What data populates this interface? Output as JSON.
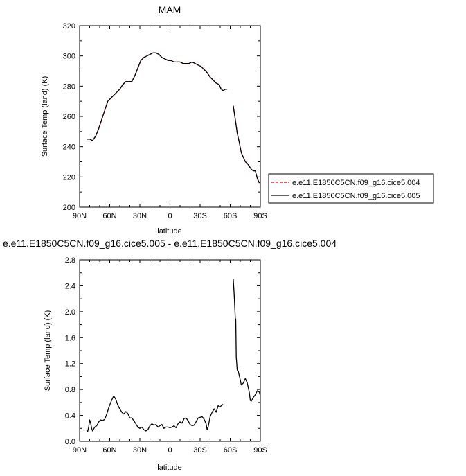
{
  "chart_data": [
    {
      "type": "line",
      "title": "MAM",
      "xlabel": "latitude",
      "ylabel": "Surface Temp (land) (K)",
      "xlim": [
        90,
        -90
      ],
      "ylim": [
        200,
        320
      ],
      "xticks": [
        90,
        60,
        30,
        0,
        -30,
        -60,
        -90
      ],
      "xtick_labels": [
        "90N",
        "60N",
        "30N",
        "0",
        "30S",
        "60S",
        "90S"
      ],
      "yticks": [
        200,
        220,
        240,
        260,
        280,
        300,
        320
      ],
      "ytick_labels": [
        "200",
        "220",
        "240",
        "260",
        "280",
        "300",
        "320"
      ],
      "legend_position": "right",
      "series": [
        {
          "name": "e.e11.E1850C5CN.f09_g16.cice5.004",
          "color": "#cc0000",
          "style": "dashed",
          "segments": [
            [
              [
                83,
                245
              ],
              [
                80,
                245
              ],
              [
                77,
                244
              ],
              [
                74,
                247
              ],
              [
                71,
                252
              ],
              [
                68,
                258
              ],
              [
                65,
                264
              ],
              [
                62,
                270
              ],
              [
                59,
                272
              ],
              [
                56,
                274
              ],
              [
                53,
                276
              ],
              [
                50,
                278
              ],
              [
                47,
                281
              ],
              [
                44,
                283
              ],
              [
                41,
                283
              ],
              [
                38,
                283
              ],
              [
                35,
                287
              ],
              [
                32,
                292
              ],
              [
                29,
                297
              ],
              [
                26,
                299
              ],
              [
                23,
                300
              ],
              [
                20,
                301
              ],
              [
                17,
                302
              ],
              [
                14,
                302
              ],
              [
                11,
                301
              ],
              [
                8,
                299
              ],
              [
                5,
                298
              ],
              [
                2,
                297
              ],
              [
                -1,
                297
              ],
              [
                -4,
                296
              ],
              [
                -7,
                296
              ],
              [
                -10,
                296
              ],
              [
                -13,
                295
              ],
              [
                -16,
                295
              ],
              [
                -19,
                295
              ],
              [
                -22,
                296
              ],
              [
                -25,
                295
              ],
              [
                -28,
                294
              ],
              [
                -31,
                293
              ],
              [
                -34,
                291
              ],
              [
                -37,
                289
              ],
              [
                -40,
                286
              ],
              [
                -43,
                284
              ],
              [
                -46,
                282
              ],
              [
                -49,
                281
              ],
              [
                -51,
                278
              ],
              [
                -53,
                277
              ],
              [
                -55,
                278
              ],
              [
                -57,
                278
              ]
            ],
            [
              [
                -63,
                267
              ],
              [
                -65,
                258
              ],
              [
                -67,
                249
              ],
              [
                -69,
                243
              ],
              [
                -71,
                236
              ],
              [
                -73,
                233
              ],
              [
                -75,
                230
              ],
              [
                -77,
                229
              ],
              [
                -79,
                227
              ],
              [
                -81,
                225
              ],
              [
                -83,
                224
              ],
              [
                -85,
                224
              ],
              [
                -87,
                219
              ],
              [
                -89,
                216
              ]
            ]
          ]
        },
        {
          "name": "e.e11.E1850C5CN.f09_g16.cice5.005",
          "color": "#000000",
          "style": "solid",
          "segments": [
            [
              [
                83,
                245
              ],
              [
                80,
                245
              ],
              [
                77,
                244
              ],
              [
                74,
                247
              ],
              [
                71,
                252
              ],
              [
                68,
                258
              ],
              [
                65,
                264
              ],
              [
                62,
                270
              ],
              [
                59,
                272
              ],
              [
                56,
                274
              ],
              [
                53,
                276
              ],
              [
                50,
                278
              ],
              [
                47,
                281
              ],
              [
                44,
                283
              ],
              [
                41,
                283
              ],
              [
                38,
                283
              ],
              [
                35,
                287
              ],
              [
                32,
                292
              ],
              [
                29,
                297
              ],
              [
                26,
                299
              ],
              [
                23,
                300
              ],
              [
                20,
                301
              ],
              [
                17,
                302
              ],
              [
                14,
                302
              ],
              [
                11,
                301
              ],
              [
                8,
                299
              ],
              [
                5,
                298
              ],
              [
                2,
                297
              ],
              [
                -1,
                297
              ],
              [
                -4,
                296
              ],
              [
                -7,
                296
              ],
              [
                -10,
                296
              ],
              [
                -13,
                295
              ],
              [
                -16,
                295
              ],
              [
                -19,
                295
              ],
              [
                -22,
                296
              ],
              [
                -25,
                295
              ],
              [
                -28,
                294
              ],
              [
                -31,
                293
              ],
              [
                -34,
                291
              ],
              [
                -37,
                289
              ],
              [
                -40,
                286
              ],
              [
                -43,
                284
              ],
              [
                -46,
                282
              ],
              [
                -49,
                281
              ],
              [
                -51,
                278
              ],
              [
                -53,
                277
              ],
              [
                -55,
                278
              ],
              [
                -57,
                278
              ]
            ],
            [
              [
                -63,
                267
              ],
              [
                -65,
                258
              ],
              [
                -67,
                249
              ],
              [
                -69,
                243
              ],
              [
                -71,
                236
              ],
              [
                -73,
                233
              ],
              [
                -75,
                230
              ],
              [
                -77,
                229
              ],
              [
                -79,
                227
              ],
              [
                -81,
                225
              ],
              [
                -83,
                224
              ],
              [
                -85,
                224
              ],
              [
                -87,
                219
              ],
              [
                -89,
                216
              ]
            ]
          ]
        }
      ]
    },
    {
      "type": "line",
      "title": "e.e11.E1850C5CN.f09_g16.cice5.005 - e.e11.E1850C5CN.f09_g16.cice5.004",
      "xlabel": "latitude",
      "ylabel": "Surface Temp (land) (K)",
      "xlim": [
        90,
        -90
      ],
      "ylim": [
        0.0,
        2.8
      ],
      "xticks": [
        90,
        60,
        30,
        0,
        -30,
        -60,
        -90
      ],
      "xtick_labels": [
        "90N",
        "60N",
        "30N",
        "0",
        "30S",
        "60S",
        "90S"
      ],
      "yticks": [
        0.0,
        0.4,
        0.8,
        1.2,
        1.6,
        2.0,
        2.4,
        2.8
      ],
      "ytick_labels": [
        "0.0",
        "0.4",
        "0.8",
        "1.2",
        "1.6",
        "2.0",
        "2.4",
        "2.8"
      ],
      "series": [
        {
          "color": "#000000",
          "style": "solid",
          "segments": [
            [
              [
                83,
                0.17
              ],
              [
                82,
                0.15
              ],
              [
                81,
                0.22
              ],
              [
                80,
                0.33
              ],
              [
                79,
                0.28
              ],
              [
                78,
                0.2
              ],
              [
                77,
                0.16
              ],
              [
                76,
                0.19
              ],
              [
                75,
                0.22
              ],
              [
                73,
                0.24
              ],
              [
                71,
                0.3
              ],
              [
                69,
                0.33
              ],
              [
                67,
                0.32
              ],
              [
                65,
                0.34
              ],
              [
                63,
                0.42
              ],
              [
                61,
                0.52
              ],
              [
                59,
                0.6
              ],
              [
                57,
                0.67
              ],
              [
                56,
                0.7
              ],
              [
                54,
                0.65
              ],
              [
                52,
                0.56
              ],
              [
                50,
                0.5
              ],
              [
                48,
                0.45
              ],
              [
                46,
                0.42
              ],
              [
                44,
                0.46
              ],
              [
                42,
                0.43
              ],
              [
                40,
                0.36
              ],
              [
                38,
                0.36
              ],
              [
                36,
                0.32
              ],
              [
                34,
                0.27
              ],
              [
                32,
                0.22
              ],
              [
                30,
                0.2
              ],
              [
                28,
                0.22
              ],
              [
                26,
                0.18
              ],
              [
                24,
                0.16
              ],
              [
                22,
                0.18
              ],
              [
                20,
                0.24
              ],
              [
                18,
                0.27
              ],
              [
                16,
                0.25
              ],
              [
                14,
                0.26
              ],
              [
                12,
                0.22
              ],
              [
                10,
                0.24
              ],
              [
                8,
                0.26
              ],
              [
                6,
                0.2
              ],
              [
                4,
                0.22
              ],
              [
                2,
                0.22
              ],
              [
                0,
                0.21
              ],
              [
                -2,
                0.22
              ],
              [
                -4,
                0.24
              ],
              [
                -6,
                0.21
              ],
              [
                -8,
                0.27
              ],
              [
                -10,
                0.3
              ],
              [
                -12,
                0.28
              ],
              [
                -14,
                0.35
              ],
              [
                -16,
                0.36
              ],
              [
                -18,
                0.32
              ],
              [
                -20,
                0.26
              ],
              [
                -22,
                0.24
              ],
              [
                -24,
                0.25
              ],
              [
                -26,
                0.3
              ],
              [
                -28,
                0.36
              ],
              [
                -30,
                0.37
              ],
              [
                -32,
                0.38
              ],
              [
                -34,
                0.34
              ],
              [
                -36,
                0.27
              ],
              [
                -37,
                0.18
              ],
              [
                -38,
                0.22
              ],
              [
                -40,
                0.38
              ],
              [
                -42,
                0.45
              ],
              [
                -44,
                0.5
              ],
              [
                -46,
                0.45
              ],
              [
                -48,
                0.55
              ],
              [
                -50,
                0.53
              ],
              [
                -52,
                0.57
              ],
              [
                -53,
                0.56
              ]
            ],
            [
              [
                -63,
                2.5
              ],
              [
                -64,
                2.25
              ],
              [
                -65,
                1.9
              ],
              [
                -65.5,
                1.88
              ],
              [
                -66,
                1.3
              ],
              [
                -67,
                1.1
              ],
              [
                -68,
                1.08
              ],
              [
                -70,
                0.95
              ],
              [
                -71,
                0.87
              ],
              [
                -73,
                0.9
              ],
              [
                -75,
                0.97
              ],
              [
                -77,
                0.9
              ],
              [
                -79,
                0.75
              ],
              [
                -80,
                0.63
              ],
              [
                -81,
                0.62
              ],
              [
                -83,
                0.68
              ],
              [
                -85,
                0.72
              ],
              [
                -87,
                0.78
              ],
              [
                -89,
                0.76
              ],
              [
                -90,
                0.7
              ]
            ]
          ]
        }
      ]
    }
  ]
}
